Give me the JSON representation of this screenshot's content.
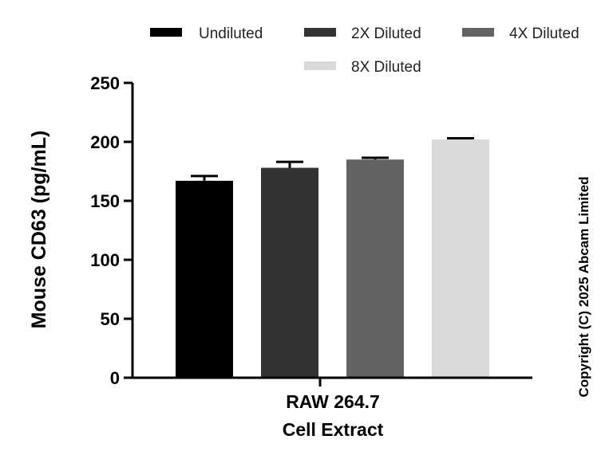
{
  "chart_data": {
    "type": "bar",
    "ylabel": "Mouse CD63 (pg/mL)",
    "xlabel": "",
    "ylim": [
      0,
      250
    ],
    "yticks": [
      0,
      50,
      100,
      150,
      200,
      250
    ],
    "category_lines": [
      "RAW 264.7",
      "Cell Extract"
    ],
    "series": [
      {
        "name": "Undiluted",
        "value": 167,
        "error": 4,
        "color": "#000000"
      },
      {
        "name": "2X Diluted",
        "value": 178,
        "error": 5,
        "color": "#333333"
      },
      {
        "name": "4X Diluted",
        "value": 185,
        "error": 1.5,
        "color": "#636363"
      },
      {
        "name": "8X Diluted",
        "value": 202,
        "error": 1,
        "color": "#d9d9d9"
      }
    ],
    "legend": {
      "placement": "top",
      "entries": [
        "Undiluted",
        "2X Diluted",
        "4X Diluted",
        "8X Diluted"
      ]
    },
    "grid": false
  },
  "copyright": "Copyright (C) 2025 Abcam Limited"
}
